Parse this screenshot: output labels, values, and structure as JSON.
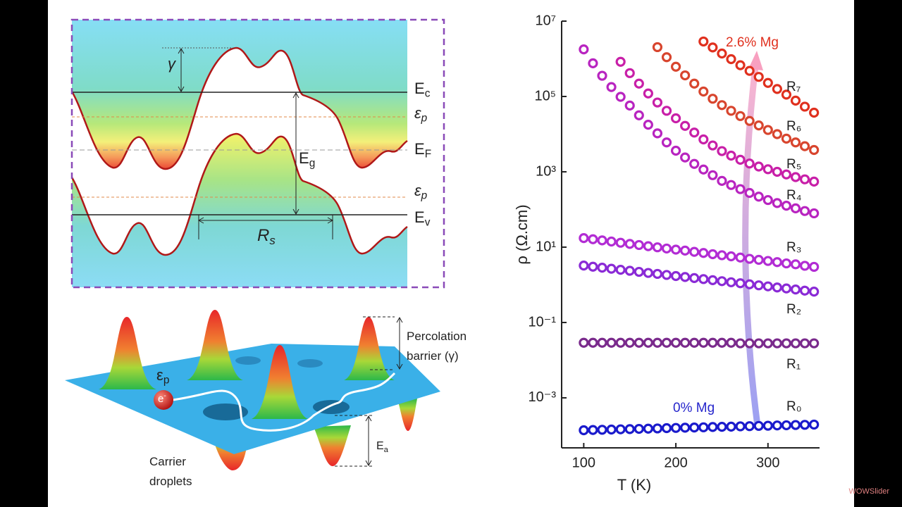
{
  "chart_data": {
    "type": "scatter",
    "x_label": "T (K)",
    "y_label": "ρ (Ω.cm)",
    "xlim": [
      76,
      356
    ],
    "xticks": [
      100,
      200,
      300
    ],
    "ylim": [
      4.7e-05,
      10000000
    ],
    "ylog": true,
    "yticks": [
      {
        "value": 10000000,
        "label": "10⁷"
      },
      {
        "value": 100000,
        "label": "10⁵"
      },
      {
        "value": 1000,
        "label": "10³"
      },
      {
        "value": 10,
        "label": "10¹"
      },
      {
        "value": 0.1,
        "label": "10⁻¹"
      },
      {
        "value": 0.001,
        "label": "10⁻³"
      }
    ],
    "annotations": [
      "2.6% Mg",
      "0% Mg"
    ],
    "series": [
      {
        "name": "R₀",
        "color": "#1a1acc",
        "x": [
          100,
          110,
          120,
          130,
          140,
          150,
          160,
          170,
          180,
          190,
          200,
          210,
          220,
          230,
          240,
          250,
          260,
          270,
          280,
          290,
          300,
          310,
          320,
          330,
          340,
          350
        ],
        "values": [
          0.000138,
          0.00014,
          0.000142,
          0.000144,
          0.000146,
          0.000148,
          0.00015,
          0.000152,
          0.000154,
          0.000157,
          0.000159,
          0.000161,
          0.000163,
          0.000165,
          0.000168,
          0.00017,
          0.000172,
          0.000175,
          0.000177,
          0.00018,
          0.000182,
          0.000185,
          0.000187,
          0.00019,
          0.000192,
          0.000195
        ]
      },
      {
        "name": "R₁",
        "color": "#7a2a8c",
        "x": [
          100,
          110,
          120,
          130,
          140,
          150,
          160,
          170,
          180,
          190,
          200,
          210,
          220,
          230,
          240,
          250,
          260,
          270,
          280,
          290,
          300,
          310,
          320,
          330,
          340,
          350
        ],
        "values": [
          0.029,
          0.029,
          0.029,
          0.029,
          0.029,
          0.029,
          0.029,
          0.029,
          0.029,
          0.029,
          0.029,
          0.029,
          0.029,
          0.029,
          0.029,
          0.029,
          0.029,
          0.028,
          0.028,
          0.028,
          0.028,
          0.028,
          0.028,
          0.028,
          0.028,
          0.028
        ]
      },
      {
        "name": "R₂",
        "color": "#8a2ad6",
        "x": [
          100,
          110,
          120,
          130,
          140,
          150,
          160,
          170,
          180,
          190,
          200,
          210,
          220,
          230,
          240,
          250,
          260,
          270,
          280,
          290,
          300,
          310,
          320,
          330,
          340,
          350
        ],
        "values": [
          3.24,
          3.03,
          2.85,
          2.67,
          2.51,
          2.36,
          2.21,
          2.07,
          1.95,
          1.83,
          1.71,
          1.61,
          1.51,
          1.42,
          1.33,
          1.25,
          1.17,
          1.1,
          1.03,
          0.97,
          0.91,
          0.85,
          0.8,
          0.75,
          0.7,
          0.66
        ]
      },
      {
        "name": "R₃",
        "color": "#b22cd4",
        "x": [
          100,
          110,
          120,
          130,
          140,
          150,
          160,
          170,
          180,
          190,
          200,
          210,
          220,
          230,
          240,
          250,
          260,
          270,
          280,
          290,
          300,
          310,
          320,
          330,
          340,
          350
        ],
        "values": [
          17.4,
          16.2,
          15.1,
          14.1,
          13.1,
          12.2,
          11.4,
          10.6,
          9.9,
          9.2,
          8.6,
          8.1,
          7.5,
          7.0,
          6.5,
          6.1,
          5.7,
          5.3,
          4.9,
          4.6,
          4.3,
          4.0,
          3.7,
          3.5,
          3.2,
          3.0
        ]
      },
      {
        "name": "R₄",
        "color": "#b824c0",
        "x": [
          100,
          110,
          120,
          130,
          140,
          150,
          160,
          170,
          180,
          190,
          200,
          210,
          220,
          230,
          240,
          250,
          260,
          270,
          280,
          290,
          300,
          310,
          320,
          330,
          340,
          350
        ],
        "values": [
          1780000,
          759000,
          355000,
          178000,
          97700,
          57500,
          31600,
          17800,
          10500,
          6030,
          3630,
          2400,
          1620,
          1150,
          813,
          575,
          447,
          347,
          275,
          219,
          178,
          148,
          126,
          107,
          91,
          79
        ]
      },
      {
        "name": "R₅",
        "color": "#c81fa8",
        "x": [
          140,
          150,
          160,
          170,
          180,
          190,
          200,
          210,
          220,
          230,
          240,
          250,
          260,
          270,
          280,
          290,
          300,
          310,
          320,
          330,
          340,
          350
        ],
        "values": [
          832000,
          417000,
          219000,
          120000,
          69200,
          41700,
          26300,
          16600,
          11000,
          7240,
          5010,
          3550,
          2690,
          2090,
          1660,
          1380,
          1170,
          1000,
          851,
          724,
          631,
          550
        ]
      },
      {
        "name": "R₆",
        "color": "#d8452e",
        "x": [
          180,
          190,
          200,
          210,
          220,
          230,
          240,
          250,
          260,
          270,
          280,
          290,
          300,
          310,
          320,
          330,
          340,
          350
        ],
        "values": [
          2040000,
          1100000,
          617000,
          363000,
          219000,
          135000,
          87100,
          58900,
          41700,
          30200,
          22400,
          17000,
          12900,
          10000,
          7590,
          6030,
          4790,
          3800
        ]
      },
      {
        "name": "R₇",
        "color": "#e0301e",
        "x": [
          230,
          240,
          250,
          260,
          270,
          280,
          290,
          300,
          310,
          320,
          330,
          340,
          350
        ],
        "values": [
          2880000,
          2000000,
          1380000,
          977000,
          676000,
          479000,
          331000,
          229000,
          158000,
          112000,
          77600,
          53700,
          37200
        ]
      }
    ]
  },
  "band_diagram": {
    "labels": [
      {
        "main": "γ"
      },
      {
        "main": "E",
        "sub": "c"
      },
      {
        "main": "ε",
        "sub": "p"
      },
      {
        "main": "E",
        "sub": "F"
      },
      {
        "main": "E",
        "sub": "g"
      },
      {
        "main": "ε",
        "sub": "p"
      },
      {
        "main": "E",
        "sub": "v"
      },
      {
        "main": "R",
        "sub": "s"
      }
    ]
  },
  "landscape": {
    "labels": [
      {
        "main": "ε",
        "sub": "p"
      },
      {
        "main": "e",
        "sup": "-"
      },
      {
        "main": "Percolation"
      },
      {
        "main": "barrier (γ)"
      },
      {
        "main": "E",
        "sub": "a"
      },
      {
        "main": "Carrier"
      },
      {
        "main": "droplets"
      }
    ]
  },
  "watermark": "WOWSlider"
}
